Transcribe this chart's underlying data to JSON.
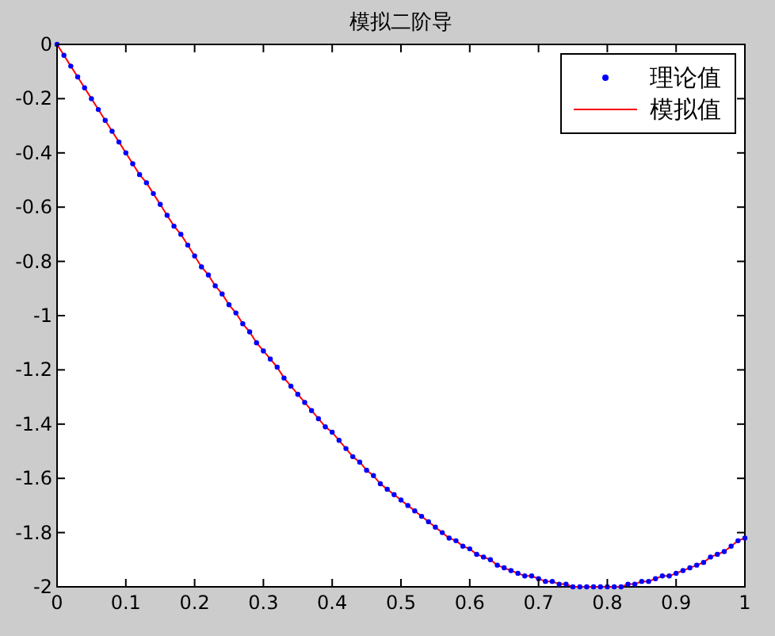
{
  "chart_data": {
    "type": "line",
    "title": "模拟二阶导",
    "x": [
      0,
      0.01,
      0.02,
      0.03,
      0.04,
      0.05,
      0.06,
      0.07,
      0.08,
      0.09,
      0.1,
      0.11,
      0.12,
      0.13,
      0.14,
      0.15,
      0.16,
      0.17,
      0.18,
      0.19,
      0.2,
      0.21,
      0.22,
      0.23,
      0.24,
      0.25,
      0.26,
      0.27,
      0.28,
      0.29,
      0.3,
      0.31,
      0.32,
      0.33,
      0.34,
      0.35,
      0.36,
      0.37,
      0.38,
      0.39,
      0.4,
      0.41,
      0.42,
      0.43,
      0.44,
      0.45,
      0.46,
      0.47,
      0.48,
      0.49,
      0.5,
      0.51,
      0.52,
      0.53,
      0.54,
      0.55,
      0.56,
      0.57,
      0.58,
      0.59,
      0.6,
      0.61,
      0.62,
      0.63,
      0.64,
      0.65,
      0.66,
      0.67,
      0.68,
      0.69,
      0.7,
      0.71,
      0.72,
      0.73,
      0.74,
      0.75,
      0.76,
      0.77,
      0.78,
      0.79,
      0.8,
      0.81,
      0.82,
      0.83,
      0.84,
      0.85,
      0.86,
      0.87,
      0.88,
      0.89,
      0.9,
      0.91,
      0.92,
      0.93,
      0.94,
      0.95,
      0.96,
      0.97,
      0.98,
      0.99,
      1
    ],
    "series": [
      {
        "name": "理论值",
        "type": "scatter",
        "marker": "circle",
        "color": "#0000ff",
        "values": [
          0,
          -0.04,
          -0.08,
          -0.12,
          -0.16,
          -0.2,
          -0.24,
          -0.28,
          -0.32,
          -0.36,
          -0.4,
          -0.44,
          -0.48,
          -0.51,
          -0.55,
          -0.59,
          -0.63,
          -0.67,
          -0.7,
          -0.74,
          -0.78,
          -0.82,
          -0.85,
          -0.89,
          -0.92,
          -0.96,
          -0.99,
          -1.03,
          -1.06,
          -1.1,
          -1.13,
          -1.16,
          -1.19,
          -1.23,
          -1.26,
          -1.29,
          -1.32,
          -1.35,
          -1.38,
          -1.41,
          -1.43,
          -1.46,
          -1.49,
          -1.52,
          -1.54,
          -1.57,
          -1.59,
          -1.62,
          -1.64,
          -1.66,
          -1.68,
          -1.7,
          -1.72,
          -1.74,
          -1.76,
          -1.78,
          -1.8,
          -1.82,
          -1.83,
          -1.85,
          -1.86,
          -1.88,
          -1.89,
          -1.9,
          -1.92,
          -1.93,
          -1.94,
          -1.95,
          -1.96,
          -1.96,
          -1.97,
          -1.98,
          -1.98,
          -1.99,
          -1.99,
          -2,
          -2,
          -2,
          -2,
          -2,
          -2,
          -2,
          -2,
          -1.99,
          -1.99,
          -1.98,
          -1.98,
          -1.97,
          -1.96,
          -1.96,
          -1.95,
          -1.94,
          -1.93,
          -1.92,
          -1.91,
          -1.89,
          -1.88,
          -1.87,
          -1.85,
          -1.83,
          -1.82
        ]
      },
      {
        "name": "模拟值",
        "marker": "none",
        "color": "#ff0000",
        "values": [
          0,
          -0.04,
          -0.08,
          -0.12,
          -0.16,
          -0.2,
          -0.24,
          -0.28,
          -0.32,
          -0.36,
          -0.4,
          -0.44,
          -0.48,
          -0.51,
          -0.55,
          -0.59,
          -0.63,
          -0.67,
          -0.7,
          -0.74,
          -0.78,
          -0.82,
          -0.85,
          -0.89,
          -0.92,
          -0.96,
          -0.99,
          -1.03,
          -1.06,
          -1.1,
          -1.13,
          -1.16,
          -1.19,
          -1.23,
          -1.26,
          -1.29,
          -1.32,
          -1.35,
          -1.38,
          -1.41,
          -1.43,
          -1.46,
          -1.49,
          -1.52,
          -1.54,
          -1.57,
          -1.59,
          -1.62,
          -1.64,
          -1.66,
          -1.68,
          -1.7,
          -1.72,
          -1.74,
          -1.76,
          -1.78,
          -1.8,
          -1.82,
          -1.83,
          -1.85,
          -1.86,
          -1.88,
          -1.89,
          -1.9,
          -1.92,
          -1.93,
          -1.94,
          -1.95,
          -1.96,
          -1.96,
          -1.97,
          -1.98,
          -1.98,
          -1.99,
          -1.99,
          -2,
          -2,
          -2,
          -2,
          -2,
          -2,
          -2,
          -2,
          -1.99,
          -1.99,
          -1.98,
          -1.98,
          -1.97,
          -1.96,
          -1.96,
          -1.95,
          -1.94,
          -1.93,
          -1.92,
          -1.91,
          -1.89,
          -1.88,
          -1.87,
          -1.85,
          -1.83,
          -1.82
        ]
      }
    ],
    "xlim": [
      0,
      1
    ],
    "xticks": [
      0,
      0.1,
      0.2,
      0.3,
      0.4,
      0.5,
      0.6,
      0.7,
      0.8,
      0.9,
      1
    ],
    "ylim": [
      -2,
      0
    ],
    "yticks": [
      -2,
      -1.8,
      -1.6,
      -1.4,
      -1.2,
      -1,
      -0.8,
      -0.6,
      -0.4,
      -0.2,
      0
    ],
    "grid": false,
    "legend": "top right"
  }
}
